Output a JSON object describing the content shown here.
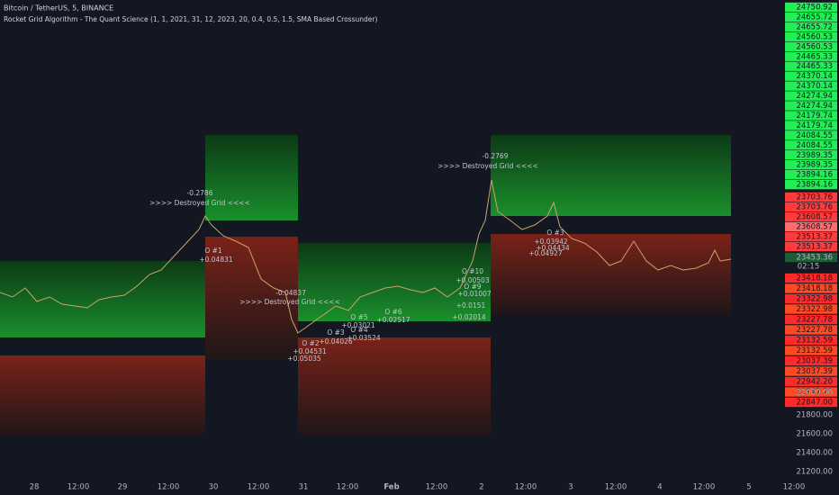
{
  "header": {
    "symbol": "Bitcoin / TetherUS, 5, BINANCE",
    "indicator": "Rocket Grid Algorithm - The Quant Science (1, 1, 2021, 31, 12, 2023, 20, 0.4, 0.5, 1.5, SMA Based Crossunder)"
  },
  "price_axis": {
    "grid_up": [
      "24750.92",
      "24655.72",
      "24655.72",
      "24560.53",
      "24560.53",
      "24465.33",
      "24465.33",
      "24370.14",
      "24370.14",
      "24274.94",
      "24274.94",
      "24179.74",
      "24179.74",
      "24084.55",
      "24084.55",
      "23989.35",
      "23989.35",
      "23894.16",
      "23894.16"
    ],
    "grid_down_upper": [
      "23703.76",
      "23703.76",
      "23608.57",
      "23608.57",
      "23513.37",
      "23513.37"
    ],
    "last_price": "23453.36",
    "countdown": "02:15",
    "grid_down_lower": [
      "23418.18",
      "23418.18",
      "23322.98",
      "23322.98",
      "23227.78",
      "23227.78",
      "23132.59",
      "23132.59",
      "23037.39",
      "23037.39",
      "22942.20",
      "22942.20",
      "22847.00"
    ],
    "ticks": [
      "22000.00",
      "21800.00",
      "21600.00",
      "21400.00",
      "21200.00"
    ]
  },
  "time_axis": [
    "28",
    "12:00",
    "29",
    "12:00",
    "30",
    "12:00",
    "31",
    "12:00",
    "Feb",
    "12:00",
    "2",
    "12:00",
    "3",
    "12:00",
    "4",
    "12:00",
    "5",
    "12:00"
  ],
  "annotations": [
    "-0.2786",
    ">>>> Destroyed Grid <<<<",
    "O #1",
    "+0.04831",
    "-0.2769",
    ">>>> Destroyed Grid <<<<",
    "-0.04837",
    ">>>> Destroyed Grid <<<<",
    "O #2",
    "+0.04531",
    "+0.05035",
    "O #3",
    "+0.04026",
    "O #5",
    "+0.03021",
    "O #4",
    "+0.03524",
    "O #6",
    "+0.02517",
    "O #10",
    "+0.00503",
    "O #9",
    "+0.01007",
    "+0.0151",
    "+0.02014",
    "O #3",
    "+0.03942",
    "+0.04434",
    "+0.04927"
  ]
}
